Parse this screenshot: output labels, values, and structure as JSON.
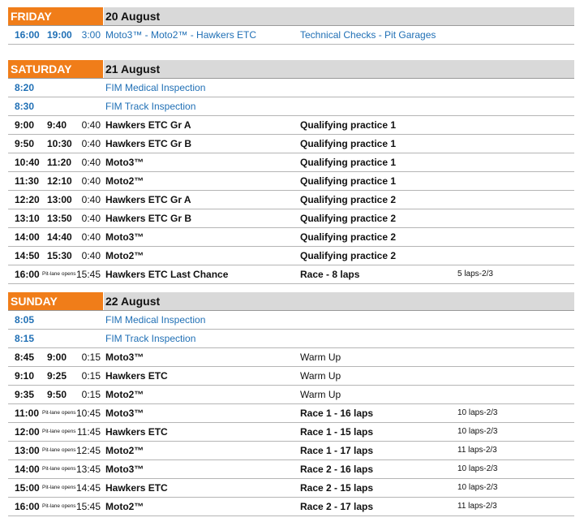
{
  "days": [
    {
      "name": "FRIDAY",
      "date": "20 August",
      "rows": [
        {
          "style": "blue",
          "start": "16:00",
          "end": "19:00",
          "small": "",
          "duration": "3:00",
          "event": "Moto3™ - Moto2™ - Hawkers ETC",
          "session": "Technical Checks - Pit Garages",
          "note": ""
        }
      ]
    },
    {
      "name": "SATURDAY",
      "date": "21 August",
      "rows": [
        {
          "style": "blue",
          "start": "8:20",
          "end": "",
          "small": "",
          "duration": "",
          "event": "FIM Medical Inspection",
          "session": "",
          "note": ""
        },
        {
          "style": "blue",
          "start": "8:30",
          "end": "",
          "small": "",
          "duration": "",
          "event": "FIM Track Inspection",
          "session": "",
          "note": ""
        },
        {
          "style": "bold",
          "start": "9:00",
          "end": "9:40",
          "small": "",
          "duration": "0:40",
          "event": "Hawkers ETC Gr A",
          "session": "Qualifying practice 1",
          "note": ""
        },
        {
          "style": "bold",
          "start": "9:50",
          "end": "10:30",
          "small": "",
          "duration": "0:40",
          "event": "Hawkers ETC Gr B",
          "session": "Qualifying practice 1",
          "note": ""
        },
        {
          "style": "bold",
          "start": "10:40",
          "end": "11:20",
          "small": "",
          "duration": "0:40",
          "event": "Moto3™",
          "session": "Qualifying practice 1",
          "note": ""
        },
        {
          "style": "bold",
          "start": "11:30",
          "end": "12:10",
          "small": "",
          "duration": "0:40",
          "event": "Moto2™",
          "session": "Qualifying practice 1",
          "note": ""
        },
        {
          "style": "bold",
          "start": "12:20",
          "end": "13:00",
          "small": "",
          "duration": "0:40",
          "event": "Hawkers ETC Gr A",
          "session": "Qualifying practice 2",
          "note": ""
        },
        {
          "style": "bold",
          "start": "13:10",
          "end": "13:50",
          "small": "",
          "duration": "0:40",
          "event": "Hawkers ETC Gr B",
          "session": "Qualifying practice 2",
          "note": ""
        },
        {
          "style": "bold",
          "start": "14:00",
          "end": "14:40",
          "small": "",
          "duration": "0:40",
          "event": "Moto3™",
          "session": "Qualifying practice 2",
          "note": ""
        },
        {
          "style": "bold",
          "start": "14:50",
          "end": "15:30",
          "small": "",
          "duration": "0:40",
          "event": "Moto2™",
          "session": "Qualifying practice 2",
          "note": ""
        },
        {
          "style": "bold",
          "start": "16:00",
          "end": "",
          "small": "Pit-lane opens",
          "duration": "15:45",
          "event": "Hawkers ETC Last Chance",
          "session": "Race - 8 laps",
          "note": "5  laps-2/3"
        }
      ]
    },
    {
      "name": "SUNDAY",
      "date": "22 August",
      "rows": [
        {
          "style": "blue",
          "start": "8:05",
          "end": "",
          "small": "",
          "duration": "",
          "event": "FIM Medical Inspection",
          "session": "",
          "note": ""
        },
        {
          "style": "blue",
          "start": "8:15",
          "end": "",
          "small": "",
          "duration": "",
          "event": "FIM Track Inspection",
          "session": "",
          "note": ""
        },
        {
          "style": "plain",
          "start": "8:45",
          "end": "9:00",
          "small": "",
          "duration": "0:15",
          "event": "Moto3™",
          "session": "Warm Up",
          "note": ""
        },
        {
          "style": "plain",
          "start": "9:10",
          "end": "9:25",
          "small": "",
          "duration": "0:15",
          "event": "Hawkers ETC",
          "session": "Warm Up",
          "note": ""
        },
        {
          "style": "plain",
          "start": "9:35",
          "end": "9:50",
          "small": "",
          "duration": "0:15",
          "event": "Moto2™",
          "session": "Warm Up",
          "note": ""
        },
        {
          "style": "bold",
          "start": "11:00",
          "end": "",
          "small": "Pit-lane opens",
          "duration": "10:45",
          "event": "Moto3™",
          "session": "Race 1 - 16 laps",
          "note": "10 laps-2/3"
        },
        {
          "style": "bold",
          "start": "12:00",
          "end": "",
          "small": "Pit-lane opens",
          "duration": "11:45",
          "event": "Hawkers ETC",
          "session": "Race 1 - 15 laps",
          "note": "10 laps-2/3"
        },
        {
          "style": "bold",
          "start": "13:00",
          "end": "",
          "small": "Pit-lane opens",
          "duration": "12:45",
          "event": "Moto2™",
          "session": "Race 1 - 17 laps",
          "note": "11 laps-2/3"
        },
        {
          "style": "bold",
          "start": "14:00",
          "end": "",
          "small": "Pit-lane opens",
          "duration": "13:45",
          "event": "Moto3™",
          "session": "Race 2 - 16 laps",
          "note": "10 laps-2/3"
        },
        {
          "style": "bold",
          "start": "15:00",
          "end": "",
          "small": "Pit-lane opens",
          "duration": "14:45",
          "event": "Hawkers ETC",
          "session": "Race 2 - 15 laps",
          "note": "10 laps-2/3"
        },
        {
          "style": "bold",
          "start": "16:00",
          "end": "",
          "small": "Pit-lane opens",
          "duration": "15:45",
          "event": "Moto2™",
          "session": "Race 2 - 17 laps",
          "note": "11 laps-2/3"
        }
      ]
    }
  ]
}
